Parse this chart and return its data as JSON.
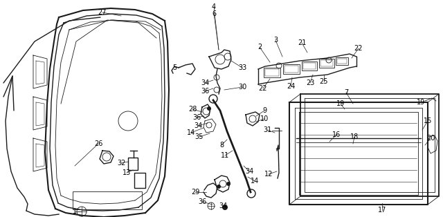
{
  "bg_color": "#ffffff",
  "line_color": "#1a1a1a",
  "label_color": "#000000",
  "fig_width": 6.4,
  "fig_height": 3.14,
  "dpi": 100
}
